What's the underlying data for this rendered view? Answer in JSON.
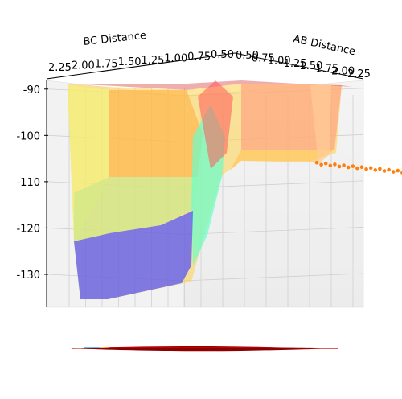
{
  "chart_data": {
    "type": "surface3d",
    "title": "",
    "xlabel": "BC Distance",
    "ylabel": "AB Distance",
    "zlabel": "",
    "x_ticks": [
      "2.25",
      "2.00",
      "1.75",
      "1.50",
      "1.25",
      "1.00",
      "0.75",
      "0.50"
    ],
    "y_ticks": [
      "0.50",
      "0.75",
      "1.00",
      "1.25",
      "1.50",
      "1.75",
      "2.00",
      "2.25"
    ],
    "z_ticks": [
      "-90",
      "-100",
      "-110",
      "-120",
      "-130"
    ],
    "zlim": [
      -134,
      -85
    ],
    "colormap": "jet",
    "contour_colors": [
      "#8b0000",
      "#c00000",
      "#1e90ff",
      "#ffa500"
    ],
    "scatter_color": "#ff7f0e"
  }
}
